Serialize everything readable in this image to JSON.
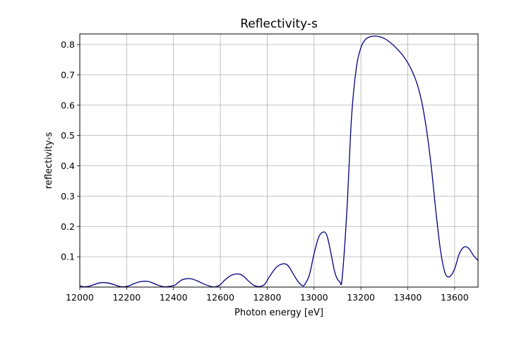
{
  "chart_data": {
    "type": "line",
    "title": "Reflectivity-s",
    "xlabel": "Photon energy [eV]",
    "ylabel": "reflectivity-s",
    "xlim": [
      12000,
      13700
    ],
    "ylim": [
      0,
      0.835
    ],
    "xticks": [
      12000,
      12200,
      12400,
      12600,
      12800,
      13000,
      13200,
      13400,
      13600
    ],
    "yticks": [
      0.1,
      0.2,
      0.3,
      0.4,
      0.5,
      0.6,
      0.7,
      0.8
    ],
    "ytick_labels": [
      "0.1",
      "0.2",
      "0.3",
      "0.4",
      "0.5",
      "0.6",
      "0.7",
      "0.8"
    ],
    "grid": true,
    "line_color": "#000080",
    "series": [
      {
        "x": [
          12000,
          12020,
          12040,
          12060,
          12080,
          12100,
          12125,
          12150,
          12170,
          12190,
          12210,
          12230,
          12260,
          12290,
          12310,
          12335,
          12360,
          12380,
          12405,
          12420,
          12440,
          12470,
          12500,
          12530,
          12560,
          12580,
          12600,
          12620,
          12650,
          12680,
          12700,
          12720,
          12745,
          12770,
          12790,
          12810,
          12840,
          12870,
          12890,
          12910,
          12930,
          12950,
          12960,
          12980,
          13000,
          13020,
          13040,
          13055,
          13070,
          13090,
          13110,
          13120,
          13140,
          13160,
          13180,
          13200,
          13220,
          13240,
          13260,
          13280,
          13300,
          13320,
          13340,
          13360,
          13380,
          13400,
          13420,
          13440,
          13460,
          13480,
          13500,
          13520,
          13540,
          13560,
          13580,
          13600,
          13620,
          13640,
          13660,
          13680,
          13700
        ],
        "y": [
          0.004,
          0.001,
          0.003,
          0.008,
          0.013,
          0.015,
          0.013,
          0.007,
          0.002,
          0.001,
          0.004,
          0.011,
          0.018,
          0.019,
          0.014,
          0.006,
          0.001,
          0.002,
          0.006,
          0.015,
          0.025,
          0.028,
          0.021,
          0.01,
          0.002,
          0.001,
          0.008,
          0.024,
          0.04,
          0.043,
          0.035,
          0.02,
          0.005,
          0.002,
          0.01,
          0.035,
          0.066,
          0.077,
          0.07,
          0.045,
          0.02,
          0.005,
          0.008,
          0.04,
          0.11,
          0.165,
          0.182,
          0.17,
          0.12,
          0.045,
          0.017,
          0.03,
          0.25,
          0.56,
          0.72,
          0.79,
          0.817,
          0.826,
          0.828,
          0.826,
          0.82,
          0.81,
          0.797,
          0.781,
          0.763,
          0.74,
          0.71,
          0.67,
          0.61,
          0.52,
          0.4,
          0.25,
          0.12,
          0.045,
          0.035,
          0.06,
          0.11,
          0.132,
          0.128,
          0.105,
          0.088
        ]
      }
    ]
  }
}
